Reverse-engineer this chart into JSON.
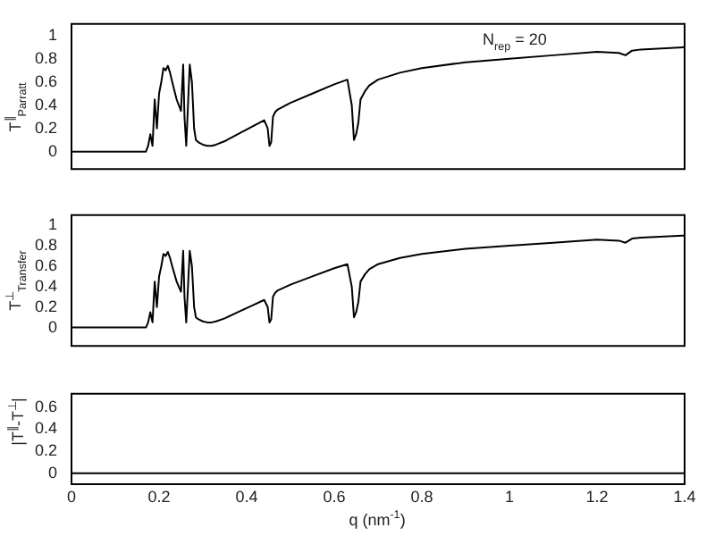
{
  "chart_data": [
    {
      "type": "line",
      "ylabel": "T$^{∥}$$_{Parratt}$",
      "annotations": [
        "N$_{rep}$ = 20"
      ],
      "xlim": [
        0,
        1.4
      ],
      "ylim": [
        -0.15,
        1.1
      ],
      "yticks": [
        0,
        0.2,
        0.4,
        0.6,
        0.8,
        1
      ],
      "tick_labels": "y",
      "grid": false,
      "legend": false,
      "marker": "none",
      "series": [
        {
          "color": "#000000",
          "x": [
            0,
            0.17,
            0.175,
            0.18,
            0.185,
            0.19,
            0.195,
            0.2,
            0.205,
            0.21,
            0.215,
            0.22,
            0.225,
            0.23,
            0.24,
            0.25,
            0.255,
            0.258,
            0.262,
            0.266,
            0.27,
            0.275,
            0.28,
            0.284,
            0.29,
            0.3,
            0.31,
            0.32,
            0.33,
            0.35,
            0.38,
            0.41,
            0.44,
            0.448,
            0.452,
            0.456,
            0.46,
            0.465,
            0.47,
            0.5,
            0.55,
            0.6,
            0.63,
            0.64,
            0.645,
            0.65,
            0.655,
            0.66,
            0.67,
            0.68,
            0.7,
            0.75,
            0.8,
            0.9,
            1.0,
            1.1,
            1.2,
            1.25,
            1.265,
            1.28,
            1.3,
            1.4
          ],
          "values": [
            0,
            0,
            0.05,
            0.15,
            0.05,
            0.45,
            0.2,
            0.5,
            0.6,
            0.72,
            0.7,
            0.74,
            0.68,
            0.6,
            0.45,
            0.35,
            0.75,
            0.3,
            0.05,
            0.4,
            0.75,
            0.6,
            0.2,
            0.1,
            0.08,
            0.06,
            0.05,
            0.05,
            0.06,
            0.09,
            0.15,
            0.21,
            0.27,
            0.2,
            0.05,
            0.08,
            0.3,
            0.34,
            0.36,
            0.42,
            0.5,
            0.58,
            0.62,
            0.4,
            0.1,
            0.15,
            0.25,
            0.45,
            0.52,
            0.57,
            0.62,
            0.68,
            0.72,
            0.77,
            0.8,
            0.83,
            0.86,
            0.85,
            0.83,
            0.87,
            0.88,
            0.9
          ]
        }
      ]
    },
    {
      "type": "line",
      "ylabel": "T$^{⊥}$$_{Transfer}$",
      "xlim": [
        0,
        1.4
      ],
      "ylim": [
        -0.18,
        1.1
      ],
      "yticks": [
        0,
        0.2,
        0.4,
        0.6,
        0.8,
        1
      ],
      "tick_labels": "y",
      "grid": false,
      "legend": false,
      "marker": "none",
      "series": [
        {
          "color": "#000000",
          "x": [
            0,
            0.17,
            0.175,
            0.18,
            0.185,
            0.19,
            0.195,
            0.2,
            0.205,
            0.21,
            0.215,
            0.22,
            0.225,
            0.23,
            0.24,
            0.25,
            0.255,
            0.258,
            0.262,
            0.266,
            0.27,
            0.275,
            0.28,
            0.284,
            0.29,
            0.3,
            0.31,
            0.32,
            0.33,
            0.35,
            0.38,
            0.41,
            0.44,
            0.448,
            0.452,
            0.456,
            0.46,
            0.465,
            0.47,
            0.5,
            0.55,
            0.6,
            0.63,
            0.64,
            0.645,
            0.65,
            0.655,
            0.66,
            0.67,
            0.68,
            0.7,
            0.75,
            0.8,
            0.9,
            1.0,
            1.1,
            1.2,
            1.25,
            1.265,
            1.28,
            1.3,
            1.4
          ],
          "values": [
            0,
            0,
            0.05,
            0.15,
            0.05,
            0.45,
            0.2,
            0.5,
            0.6,
            0.72,
            0.7,
            0.74,
            0.68,
            0.6,
            0.45,
            0.35,
            0.75,
            0.3,
            0.05,
            0.4,
            0.75,
            0.6,
            0.2,
            0.1,
            0.08,
            0.06,
            0.05,
            0.05,
            0.06,
            0.09,
            0.15,
            0.21,
            0.27,
            0.2,
            0.05,
            0.08,
            0.3,
            0.34,
            0.36,
            0.42,
            0.5,
            0.58,
            0.62,
            0.4,
            0.1,
            0.15,
            0.25,
            0.45,
            0.52,
            0.57,
            0.62,
            0.68,
            0.72,
            0.77,
            0.8,
            0.83,
            0.86,
            0.85,
            0.83,
            0.87,
            0.88,
            0.9
          ]
        }
      ]
    },
    {
      "type": "line",
      "ylabel": "|T$^{∥}$-T$^{⊥}$|",
      "xlabel": "q (nm$^{-1}$)",
      "xlim": [
        0,
        1.4
      ],
      "xticks": [
        0,
        0.2,
        0.4,
        0.6,
        0.8,
        1,
        1.2,
        1.4
      ],
      "ylim": [
        -0.1,
        0.72
      ],
      "yticks": [
        0,
        0.2,
        0.4,
        0.6
      ],
      "grid": false,
      "legend": false,
      "marker": "none",
      "series": [
        {
          "color": "#000000",
          "x": [
            0,
            1.4
          ],
          "values": [
            0,
            0
          ]
        }
      ]
    }
  ]
}
